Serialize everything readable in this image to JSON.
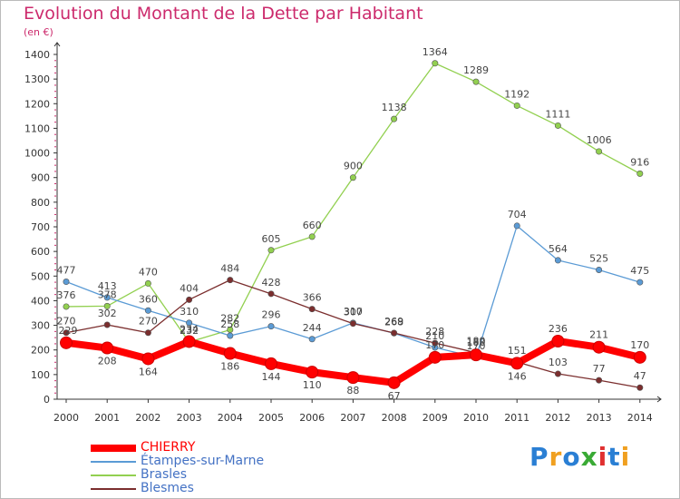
{
  "header": {
    "title": "Evolution du Montant de la Dette par Habitant",
    "subtitle": "(en €)"
  },
  "brand": {
    "text": "Proxiti",
    "colors": [
      "#2a7fd4",
      "#f0a020",
      "#2a7fd4",
      "#3aaa35",
      "#e03030",
      "#2a7fd4",
      "#f0a020"
    ]
  },
  "chart_data": {
    "type": "line",
    "title": "Evolution du Montant de la Dette par Habitant",
    "subtitle": "(en €)",
    "x": [
      "2000",
      "2001",
      "2002",
      "2003",
      "2004",
      "2005",
      "2006",
      "2007",
      "2008",
      "2009",
      "2010",
      "2011",
      "2012",
      "2013",
      "2014"
    ],
    "ylim": [
      0,
      1400
    ],
    "yticks": [
      0,
      100,
      200,
      300,
      400,
      500,
      600,
      700,
      800,
      900,
      1000,
      1100,
      1200,
      1300,
      1400
    ],
    "grid": false,
    "legend_position": "bottom-left",
    "series": [
      {
        "name": "CHIERRY",
        "color": "#ff0000",
        "values": [
          229,
          208,
          164,
          234,
          186,
          144,
          110,
          88,
          67,
          170,
          180,
          146,
          236,
          211,
          170
        ]
      },
      {
        "name": "Étampes-sur-Marne",
        "color": "#5b9bd5",
        "values": [
          477,
          413,
          360,
          310,
          258,
          296,
          244,
          310,
          268,
          210,
          170,
          704,
          564,
          525,
          475
        ]
      },
      {
        "name": "Brasles",
        "color": "#92d050",
        "values": [
          376,
          378,
          470,
          232,
          282,
          605,
          660,
          900,
          1138,
          1364,
          1289,
          1192,
          1111,
          1006,
          916
        ]
      },
      {
        "name": "Blesmes",
        "color": "#7b2e2e",
        "values": [
          270,
          302,
          270,
          404,
          484,
          428,
          366,
          307,
          269,
          228,
          189,
          151,
          103,
          77,
          47
        ]
      }
    ]
  }
}
